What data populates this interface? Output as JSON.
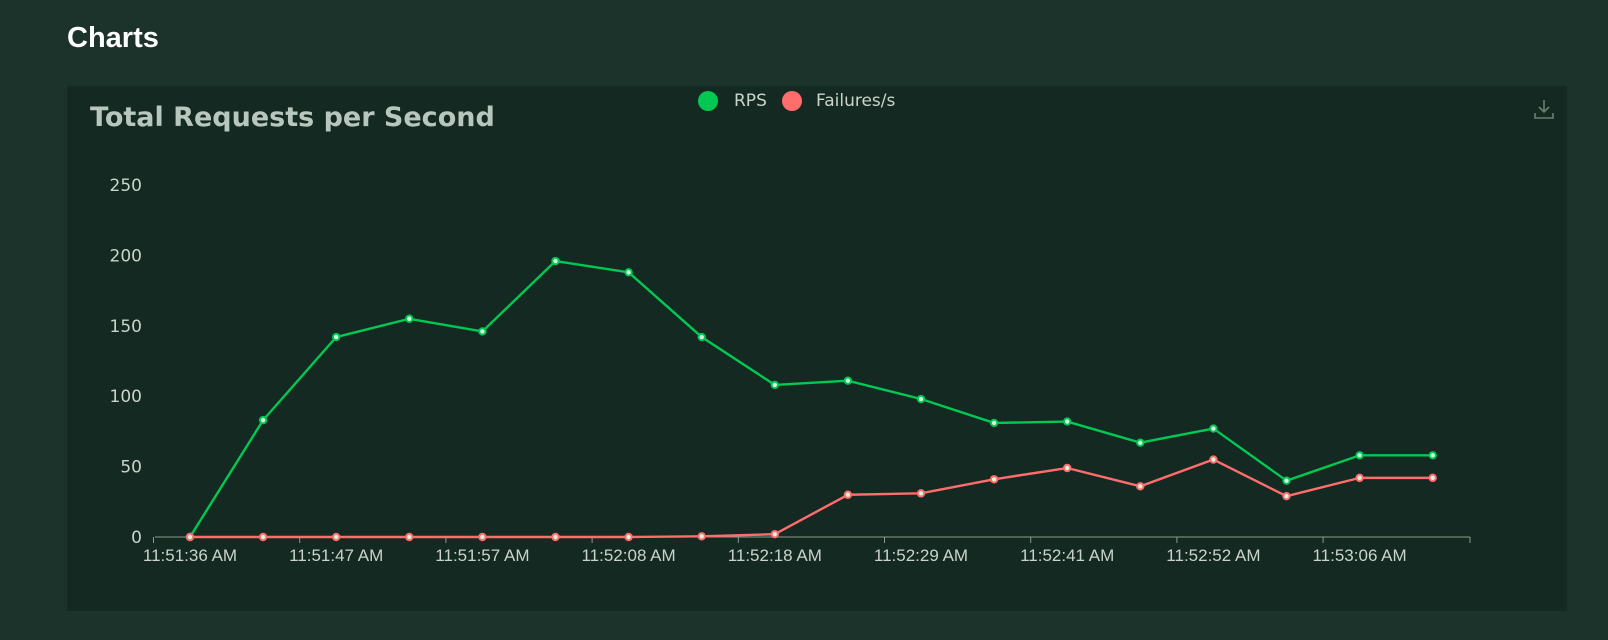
{
  "page": {
    "heading": "Charts"
  },
  "colors": {
    "rps": "#00c853",
    "failures": "#ff6d6d",
    "axis": "#8a9a90"
  },
  "icons": {
    "download": "download-icon"
  },
  "chart_data": {
    "type": "line",
    "title": "Total Requests per Second",
    "legend_position": "top-center",
    "ylim": [
      0,
      250
    ],
    "y_ticks": [
      0,
      50,
      100,
      150,
      200,
      250
    ],
    "x": [
      "11:51:36 AM",
      "11:51:42 AM",
      "11:51:47 AM",
      "11:51:52 AM",
      "11:51:57 AM",
      "11:52:03 AM",
      "11:52:08 AM",
      "11:52:13 AM",
      "11:52:18 AM",
      "11:52:24 AM",
      "11:52:29 AM",
      "11:52:35 AM",
      "11:52:41 AM",
      "11:52:46 AM",
      "11:52:52 AM",
      "11:52:58 AM",
      "11:53:06 AM",
      "11:53:11 AM"
    ],
    "x_tick_labels": [
      "11:51:36 AM",
      "11:51:47 AM",
      "11:51:57 AM",
      "11:52:08 AM",
      "11:52:18 AM",
      "11:52:29 AM",
      "11:52:41 AM",
      "11:52:52 AM",
      "11:53:06 AM"
    ],
    "series": [
      {
        "name": "RPS",
        "values": [
          0,
          83,
          142,
          155,
          146,
          196,
          188,
          142,
          108,
          111,
          98,
          81,
          82,
          67,
          77,
          40,
          58,
          58
        ]
      },
      {
        "name": "Failures/s",
        "values": [
          0,
          0,
          0,
          0,
          0,
          0,
          0,
          0.5,
          2,
          30,
          31,
          41,
          49,
          36,
          55,
          29,
          42,
          42
        ]
      }
    ],
    "grid": false
  }
}
